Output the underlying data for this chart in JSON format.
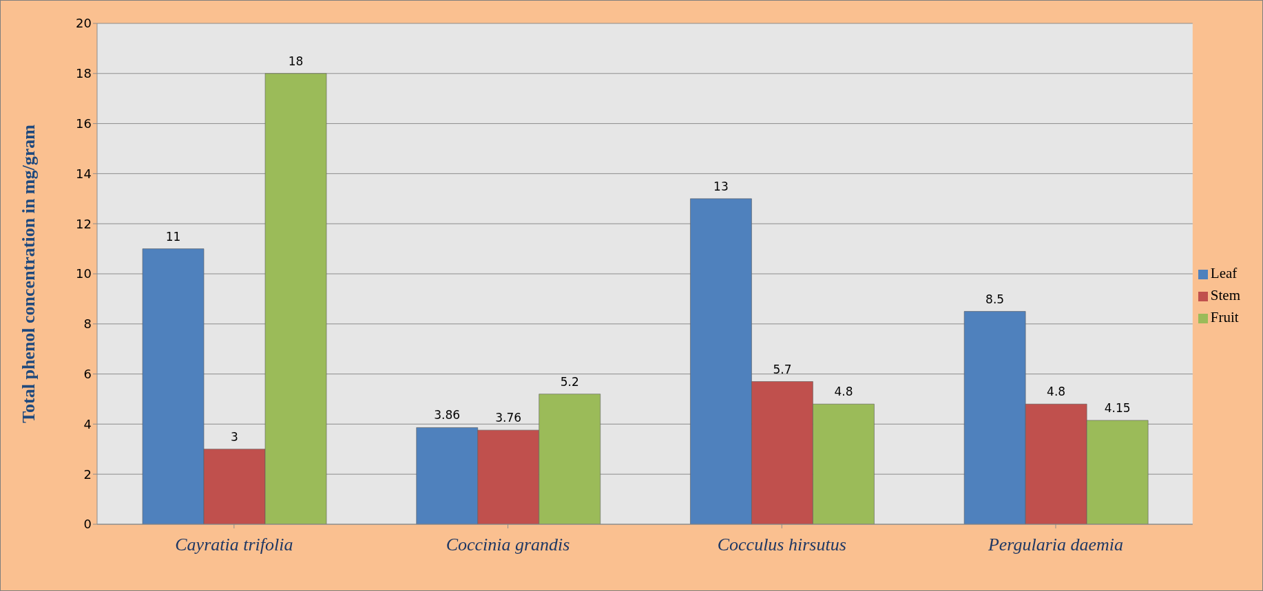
{
  "chart_data": {
    "type": "bar",
    "ylabel": "Total phenol  concentration in mg/gram",
    "categories": [
      "Cayratia trifolia",
      "Coccinia grandis",
      "Cocculus hirsutus",
      "Pergularia daemia"
    ],
    "series": [
      {
        "name": "Leaf",
        "color": "#4f81bd",
        "values": [
          11,
          3.86,
          13,
          8.5
        ]
      },
      {
        "name": "Stem",
        "color": "#c0504d",
        "values": [
          3,
          3.76,
          5.7,
          4.8
        ]
      },
      {
        "name": "Fruit",
        "color": "#9bbb59",
        "values": [
          18,
          5.2,
          4.8,
          4.15
        ]
      }
    ],
    "ylim": [
      0,
      20
    ],
    "yticks": [
      0,
      2,
      4,
      6,
      8,
      10,
      12,
      14,
      16,
      18,
      20
    ],
    "grid": "y",
    "legend": "right",
    "data_labels": true
  }
}
